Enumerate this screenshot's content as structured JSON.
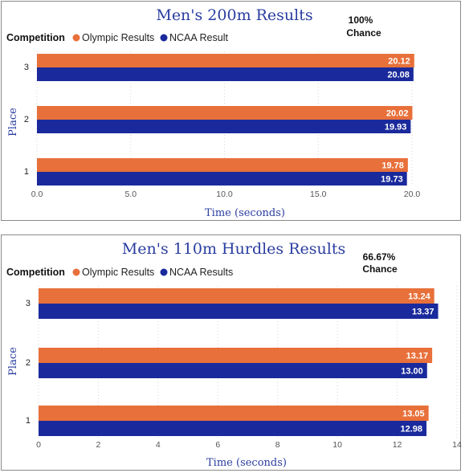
{
  "chart_data": [
    {
      "type": "bar",
      "orientation": "horizontal",
      "title": "Men's 200m Results",
      "annotation_line1": "100%",
      "annotation_line2": "Chance",
      "legend_title": "Competition",
      "xlabel": "Time (seconds)",
      "ylabel": "Place",
      "categories": [
        "3",
        "2",
        "1"
      ],
      "series": [
        {
          "name": "Olympic Results",
          "color": "#e8703a",
          "values": [
            20.12,
            20.02,
            19.78
          ],
          "labels": [
            "20.12",
            "20.02",
            "19.78"
          ]
        },
        {
          "name": "NCAA Result",
          "color": "#1a2a9c",
          "values": [
            20.08,
            19.93,
            19.73
          ],
          "labels": [
            "20.08",
            "19.93",
            "19.73"
          ]
        }
      ],
      "xlim": [
        0,
        20
      ],
      "xticks": [
        "0.0",
        "5.0",
        "10.0",
        "15.0",
        "20.0"
      ],
      "grid": true,
      "legend_position": "top-left"
    },
    {
      "type": "bar",
      "orientation": "horizontal",
      "title": "Men's 110m Hurdles Results",
      "annotation_line1": "66.67%",
      "annotation_line2": "Chance",
      "legend_title": "Competition",
      "xlabel": "Time (seconds)",
      "ylabel": "Place",
      "categories": [
        "3",
        "2",
        "1"
      ],
      "series": [
        {
          "name": "Olympic Results",
          "color": "#e8703a",
          "values": [
            13.24,
            13.17,
            13.05
          ],
          "labels": [
            "13.24",
            "13.17",
            "13.05"
          ]
        },
        {
          "name": "NCAA Results",
          "color": "#1a2a9c",
          "values": [
            13.37,
            13.0,
            12.98
          ],
          "labels": [
            "13.37",
            "13.00",
            "12.98"
          ]
        }
      ],
      "xlim": [
        0,
        14
      ],
      "xticks": [
        "0",
        "2",
        "4",
        "6",
        "8",
        "10",
        "12",
        "14"
      ],
      "grid": true,
      "legend_position": "top-left"
    }
  ]
}
